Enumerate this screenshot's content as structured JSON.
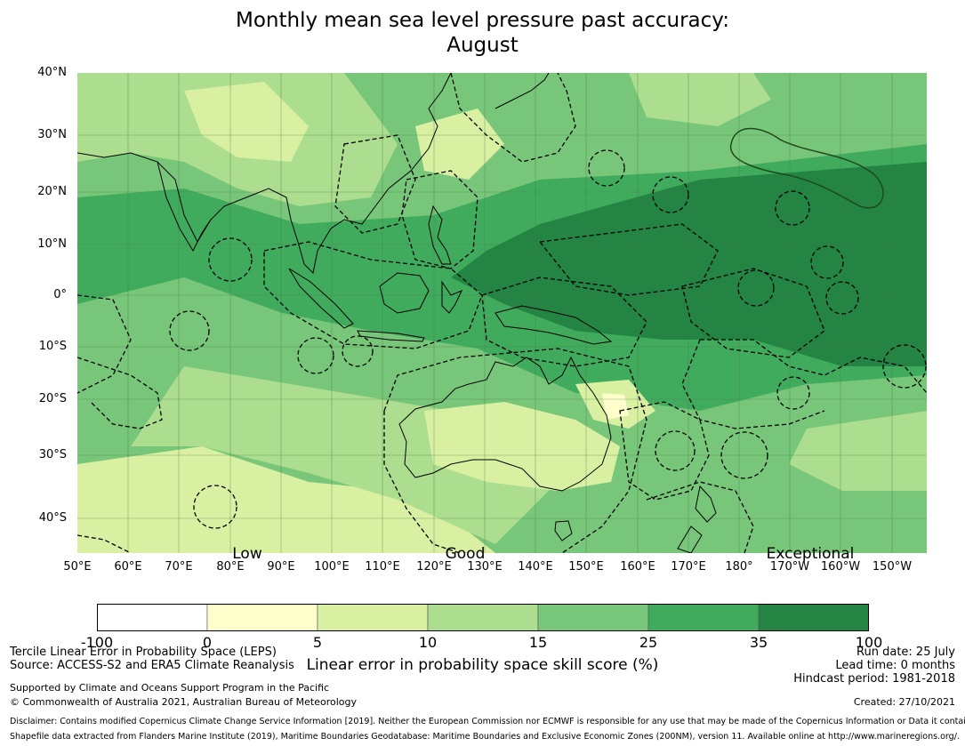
{
  "title": {
    "line1": "Monthly mean sea level pressure past accuracy:",
    "line2": "August"
  },
  "map": {
    "lat_labels": [
      "40°N",
      "30°N",
      "20°N",
      "10°N",
      "0°",
      "10°S",
      "20°S",
      "30°S",
      "40°S"
    ],
    "lon_labels": [
      "50°E",
      "60°E",
      "70°E",
      "80°E",
      "90°E",
      "100°E",
      "110°E",
      "120°E",
      "130°E",
      "140°E",
      "150°E",
      "160°E",
      "170°E",
      "180°",
      "170°W",
      "160°W",
      "150°W"
    ],
    "land_color": "#000000",
    "grid_color": "#4a7a4a"
  },
  "categories": [
    "Low",
    "Good",
    "Exceptional"
  ],
  "colorbar": {
    "bounds": [
      "-100",
      "0",
      "5",
      "10",
      "15",
      "25",
      "35",
      "100"
    ],
    "colors": [
      "#ffffff",
      "#ffffcc",
      "#d9f0a3",
      "#addd8e",
      "#78c679",
      "#41ab5d",
      "#238443"
    ],
    "label": "Linear error in probability space skill score (%)"
  },
  "footer": {
    "left1": "Tercile Linear Error in Probability Space (LEPS)",
    "left2": "Source: ACCESS-S2 and ERA5 Climate Reanalysis",
    "left3": "Supported by Climate and Oceans Support Program in the Pacific",
    "left4": "© Commonwealth of Australia 2021, Australian Bureau of Meteorology",
    "right1": "Run date: 25 July",
    "right2": "Lead time: 0 months",
    "right3": "Hindcast period: 1981-2018",
    "right4": "Created: 27/10/2021",
    "disclaimer1": "Disclaimer: Contains modified Copernicus Climate Change Service Information [2019]. Neither the European Commission nor ECMWF is responsible for any use that may be made of the Copernicus Information or Data it contains.",
    "disclaimer2": "Shapefile data extracted from Flanders Marine Institute (2019), Maritime Boundaries Geodatabase: Maritime Boundaries and Exclusive Economic Zones (200NM), version 11. Available online at http://www.marineregions.org/."
  }
}
